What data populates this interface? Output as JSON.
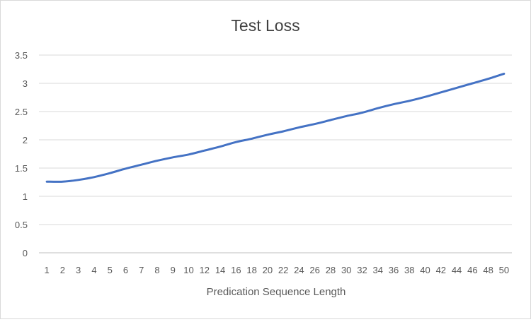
{
  "chart_data": {
    "type": "line",
    "title": "Test Loss",
    "xlabel": "Predication Sequence Length",
    "ylabel": "",
    "ylim": [
      0,
      3.5
    ],
    "yticks": [
      "0",
      "0.5",
      "1",
      "1.5",
      "2",
      "2.5",
      "3",
      "3.5"
    ],
    "grid": true,
    "legend": "none",
    "categories": [
      "1",
      "2",
      "3",
      "4",
      "5",
      "6",
      "7",
      "8",
      "9",
      "10",
      "12",
      "14",
      "16",
      "18",
      "20",
      "22",
      "24",
      "26",
      "28",
      "30",
      "32",
      "34",
      "36",
      "38",
      "40",
      "42",
      "44",
      "46",
      "48",
      "50"
    ],
    "series": [
      {
        "color": "#4472c4",
        "values": [
          1.26,
          1.26,
          1.29,
          1.34,
          1.41,
          1.49,
          1.56,
          1.63,
          1.69,
          1.74,
          1.81,
          1.88,
          1.96,
          2.02,
          2.09,
          2.15,
          2.22,
          2.28,
          2.35,
          2.42,
          2.48,
          2.56,
          2.63,
          2.69,
          2.76,
          2.84,
          2.92,
          3.0,
          3.08,
          3.17
        ]
      }
    ]
  }
}
